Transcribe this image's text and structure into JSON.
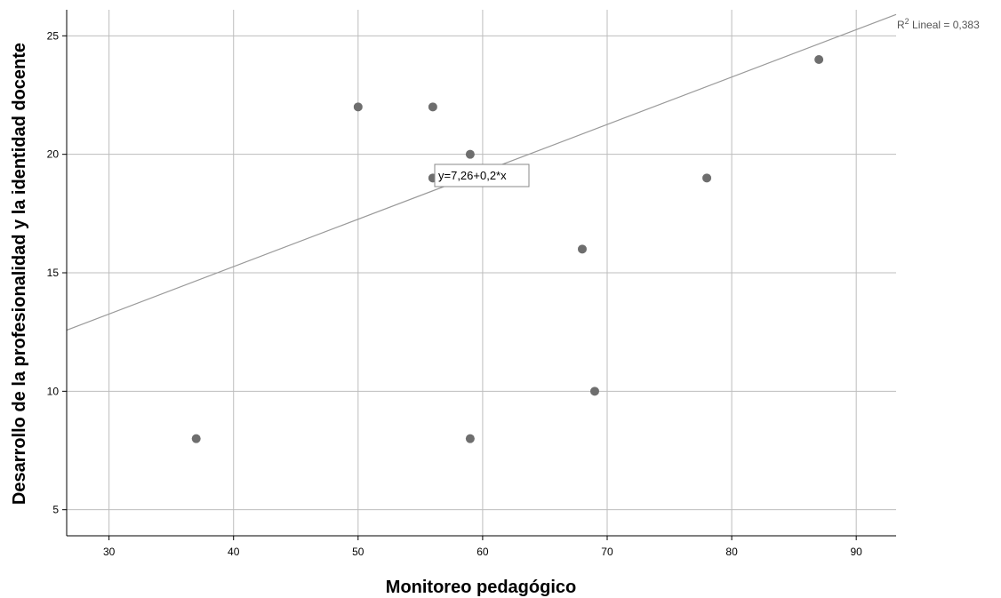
{
  "chart_data": {
    "type": "scatter",
    "xlabel": "Monitoreo pedagógico",
    "ylabel": "Desarrollo de la profesionalidad y la identidad docente",
    "xlim": [
      26.6,
      93.2
    ],
    "ylim": [
      3.9,
      26.1
    ],
    "x_ticks": [
      30,
      40,
      50,
      60,
      70,
      80,
      90
    ],
    "y_ticks": [
      5,
      10,
      15,
      20,
      25
    ],
    "grid": true,
    "colors": {
      "points": "#6e6e6e",
      "fit_line": "#999999",
      "grid": "#bdbdbd",
      "axis": "#000000"
    },
    "points": [
      {
        "x": 37,
        "y": 8
      },
      {
        "x": 50,
        "y": 22
      },
      {
        "x": 56,
        "y": 22
      },
      {
        "x": 56,
        "y": 19
      },
      {
        "x": 59,
        "y": 20
      },
      {
        "x": 59,
        "y": 8
      },
      {
        "x": 68,
        "y": 16
      },
      {
        "x": 69,
        "y": 10
      },
      {
        "x": 78,
        "y": 19
      },
      {
        "x": 87,
        "y": 24
      }
    ],
    "fit_line": {
      "intercept": 7.26,
      "slope": 0.2
    },
    "annotations": {
      "equation": "y=7,26+0,2*x",
      "r2_label_prefix": "R",
      "r2_label_sup": "2",
      "r2_label_text": " Lineal = 0,383"
    }
  }
}
